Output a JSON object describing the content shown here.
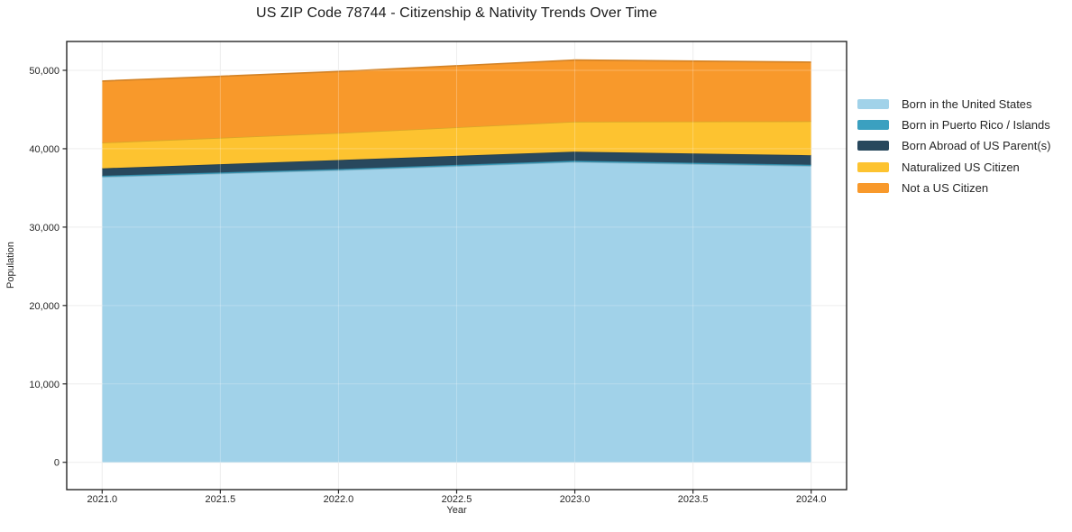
{
  "chart_data": {
    "type": "area",
    "stacked": true,
    "title": "US ZIP Code 78744 - Citizenship & Nativity Trends Over Time",
    "xlabel": "Year",
    "ylabel": "Population",
    "x": [
      2021,
      2022,
      2023,
      2024
    ],
    "series": [
      {
        "name": "Born in the United States",
        "color": "#A1D2E9",
        "values": [
          36400,
          37250,
          38300,
          37800
        ]
      },
      {
        "name": "Born in Puerto Rico / Islands",
        "color": "#3BA0C0",
        "values": [
          150,
          150,
          170,
          160
        ]
      },
      {
        "name": "Born Abroad of US Parent(s)",
        "color": "#28485D",
        "values": [
          950,
          1150,
          1150,
          1200
        ]
      },
      {
        "name": "Naturalized US Citizen",
        "color": "#FDC330",
        "values": [
          3270,
          3460,
          3830,
          4340
        ]
      },
      {
        "name": "Not a US Citizen",
        "color": "#F8992B",
        "values": [
          7860,
          7840,
          7860,
          7550
        ]
      }
    ],
    "stack_totals": [
      48630,
      49850,
      51310,
      51050
    ],
    "xlim": [
      2020.85,
      2024.15
    ],
    "ylim": [
      -3485,
      53680
    ],
    "xticks": {
      "values": [
        2021.0,
        2021.5,
        2022.0,
        2022.5,
        2023.0,
        2023.5,
        2024.0
      ],
      "labels": [
        "2021.0",
        "2021.5",
        "2022.0",
        "2022.5",
        "2023.0",
        "2023.5",
        "2024.0"
      ]
    },
    "yticks": {
      "values": [
        0,
        10000,
        20000,
        30000,
        40000,
        50000
      ],
      "labels": [
        "0",
        "10,000",
        "20,000",
        "30,000",
        "40,000",
        "50,000"
      ]
    },
    "grid": true,
    "grid_color": "#e8e8e8",
    "spine_color": "#262626",
    "tick_label_color": "#262626",
    "legend_position": "right of plot, frameless"
  }
}
